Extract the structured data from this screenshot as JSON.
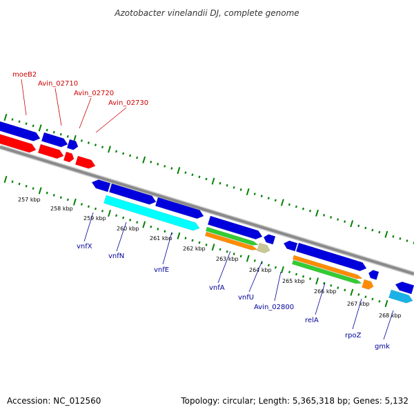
{
  "title": "Azotobacter vinelandii DJ, complete genome",
  "footer": {
    "accession": "Accession: NC_012560",
    "stats": "Topology: circular; Length: 5,365,318 bp; Genes: 5,132"
  },
  "colors": {
    "backbone": "#888888",
    "ticks": "#008000",
    "forward_cds": "#0000dd",
    "reverse_cds": "#ff0000",
    "top_labels": "#cc0000",
    "bottom_labels": "#000099",
    "cyan": "#00ffff",
    "orange": "#ff8c00",
    "green": "#33cc33",
    "khaki": "#c8c896",
    "skyblue": "#1ab2e6"
  },
  "axis": {
    "kbp_labels": [
      "257 kbp",
      "258 kbp",
      "259 kbp",
      "260 kbp",
      "261 kbp",
      "262 kbp",
      "263 kbp",
      "264 kbp",
      "265 kbp",
      "266 kbp",
      "267 kbp",
      "268 kbp"
    ]
  },
  "gene_labels_top": [
    "moeB2",
    "Avin_02710",
    "Avin_02720",
    "Avin_02730"
  ],
  "gene_labels_bottom": [
    "vnfX",
    "vnfN",
    "vnfE",
    "vnfA",
    "vnfU",
    "Avin_02800",
    "relA",
    "rpoZ",
    "gmk"
  ]
}
